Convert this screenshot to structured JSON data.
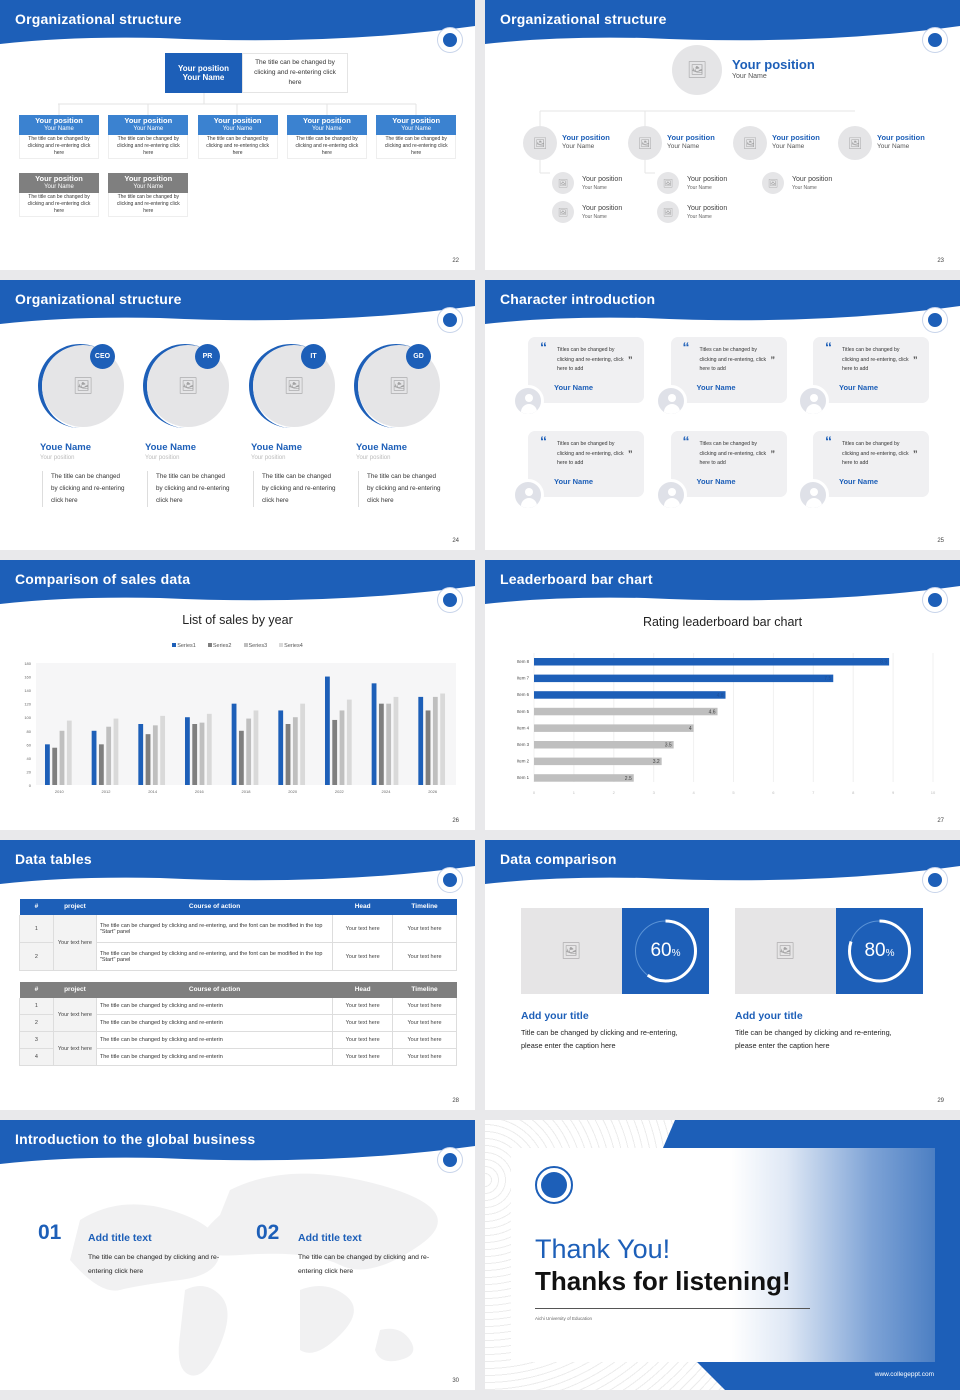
{
  "colors": {
    "accent": "#1d5fb8",
    "accent_light": "#3b82d0",
    "gray_header": "#7f7f7f",
    "bar_gray": "#bfbfbf",
    "card_bg": "#f0f0f2"
  },
  "slides": [
    {
      "title": "Organizational structure",
      "page": "22",
      "top": {
        "position": "Your position",
        "name": "Your Name",
        "desc": "The title can be changed by clicking and re-entering click here"
      },
      "row1": [
        {
          "position": "Your position",
          "name": "Your Name",
          "desc": "The title can be changed by clicking and re-entering click here"
        },
        {
          "position": "Your position",
          "name": "Your Name",
          "desc": "The title can be changed by clicking and re-entering click here"
        },
        {
          "position": "Your position",
          "name": "Your Name",
          "desc": "The title can be changed by clicking and re-entering click here"
        },
        {
          "position": "Your position",
          "name": "Your Name",
          "desc": "The title can be changed by clicking and re-entering click here"
        },
        {
          "position": "Your position",
          "name": "Your Name",
          "desc": "The title can be changed by clicking and re-entering click here"
        }
      ],
      "row2": [
        {
          "position": "Your position",
          "name": "Your Name",
          "desc": "The title can be changed by clicking and re-entering click here"
        },
        {
          "position": "Your position",
          "name": "Your Name",
          "desc": "The title can be changed by clicking and re-entering click here"
        }
      ]
    },
    {
      "title": "Organizational structure",
      "page": "23",
      "top": {
        "position": "Your position",
        "name": "Your Name"
      },
      "level1": [
        {
          "position": "Your position",
          "name": "Your Name"
        },
        {
          "position": "Your position",
          "name": "Your Name"
        },
        {
          "position": "Your position",
          "name": "Your Name"
        },
        {
          "position": "Your position",
          "name": "Your Name"
        }
      ],
      "level2": [
        {
          "position": "Your position",
          "name": "Your Name"
        },
        {
          "position": "Your position",
          "name": "Your Name"
        },
        {
          "position": "Your position",
          "name": "Your Name"
        },
        {
          "position": "Your position",
          "name": "Your Name"
        },
        {
          "position": "Your position",
          "name": "Your Name"
        }
      ]
    },
    {
      "title": "Organizational structure",
      "page": "24",
      "members": [
        {
          "badge": "CEO",
          "name": "Youe Name",
          "position": "Your position",
          "desc": "The title can be changed by clicking and re-entering click here"
        },
        {
          "badge": "PR",
          "name": "Youe Name",
          "position": "Your position",
          "desc": "The title can be changed by clicking and re-entering click here"
        },
        {
          "badge": "IT",
          "name": "Youe Name",
          "position": "Your position",
          "desc": "The title can be changed by clicking and re-entering click here"
        },
        {
          "badge": "GD",
          "name": "Youe Name",
          "position": "Your position",
          "desc": "The title can be changed by clicking and re-entering click here"
        }
      ]
    },
    {
      "title": "Character introduction",
      "page": "25",
      "cards": [
        {
          "quote": "Titles can be changed by clicking and re-entering, click here to add",
          "name": "Your Name"
        },
        {
          "quote": "Titles can be changed by clicking and re-entering, click here to add",
          "name": "Your Name"
        },
        {
          "quote": "Titles can be changed by clicking and re-entering, click here to add",
          "name": "Your Name"
        },
        {
          "quote": "Titles can be changed by clicking and re-entering, click here to add",
          "name": "Your Name"
        },
        {
          "quote": "Titles can be changed by clicking and re-entering, click here to add",
          "name": "Your Name"
        },
        {
          "quote": "Titles can be changed by clicking and re-entering, click here to add",
          "name": "Your Name"
        }
      ]
    },
    {
      "title": "Comparison of sales data",
      "page": "26"
    },
    {
      "title": "Leaderboard bar chart",
      "page": "27"
    },
    {
      "title": "Data tables",
      "page": "28",
      "table1": {
        "headers": [
          "#",
          "project",
          "Course of action",
          "Head",
          "Timeline"
        ],
        "project": "Your text here",
        "rows": [
          [
            "1",
            "The title can be changed by clicking and re-entering, and the font can be modified in the top \"Start\" panel",
            "Your text here",
            "Your text here"
          ],
          [
            "2",
            "The title can be changed by clicking and re-entering, and the font can be modified in the top \"Start\" panel",
            "Your text here",
            "Your text here"
          ]
        ]
      },
      "table2": {
        "headers": [
          "#",
          "project",
          "Course of action",
          "Head",
          "Timeline"
        ],
        "projects": [
          "Your text here",
          "Your text here"
        ],
        "rows": [
          [
            "1",
            "The title can be changed by clicking and re-enterin",
            "Your text here",
            "Your text here"
          ],
          [
            "2",
            "The title can be changed by clicking and re-enterin",
            "Your text here",
            "Your text here"
          ],
          [
            "3",
            "The title can be changed by clicking and re-enterin",
            "Your text here",
            "Your text here"
          ],
          [
            "4",
            "The title can be changed by clicking and re-enterin",
            "Your text here",
            "Your text here"
          ]
        ]
      }
    },
    {
      "title": "Data comparison",
      "page": "29",
      "items": [
        {
          "value": 60,
          "value_label": "60",
          "unit": "%",
          "title": "Add your title",
          "desc": "Title can be changed by clicking and re-entering, please enter the caption here"
        },
        {
          "value": 80,
          "value_label": "80",
          "unit": "%",
          "title": "Add your title",
          "desc": "Title can be changed by clicking and re-entering, please enter the caption here"
        }
      ]
    },
    {
      "title": "Introduction to the global business",
      "page": "30",
      "items": [
        {
          "num": "01",
          "title": "Add title text",
          "desc": "The title can be changed by clicking and re-entering click here"
        },
        {
          "num": "02",
          "title": "Add title text",
          "desc": "The title can be changed by clicking and re-entering click here"
        }
      ]
    },
    {
      "thanks": "Thank You!",
      "subtitle": "Thanks for listening!",
      "university": "Aichi University of Education",
      "website": "www.collegeppt.com"
    }
  ],
  "chart_data": [
    {
      "type": "bar",
      "title": "List of sales by year",
      "categories": [
        "2010",
        "2012",
        "2014",
        "2016",
        "2018",
        "2020",
        "2022",
        "2024",
        "2026"
      ],
      "series": [
        {
          "name": "Series1",
          "color": "#1d5fb8",
          "values": [
            60,
            80,
            90,
            100,
            120,
            110,
            160,
            150,
            130
          ]
        },
        {
          "name": "Series2",
          "color": "#7f7f7f",
          "values": [
            55,
            60,
            75,
            90,
            80,
            90,
            96,
            120,
            110
          ]
        },
        {
          "name": "Series3",
          "color": "#bfbfbf",
          "values": [
            80,
            86,
            88,
            92,
            98,
            100,
            110,
            120,
            130
          ]
        },
        {
          "name": "Series4",
          "color": "#d9d9d9",
          "values": [
            95,
            98,
            102,
            105,
            110,
            120,
            126,
            130,
            135
          ]
        }
      ],
      "ylim": [
        0,
        180
      ],
      "yticks": [
        "0",
        "20",
        "40",
        "60",
        "80",
        "100",
        "120",
        "140",
        "160",
        "180"
      ],
      "legend": "top",
      "grid": false
    },
    {
      "type": "bar",
      "orientation": "horizontal",
      "title": "Rating leaderboard bar chart",
      "categories": [
        "Item 8",
        "Item 7",
        "Item 6",
        "Item 5",
        "Item 4",
        "Item 3",
        "Item 2",
        "Item 1"
      ],
      "values": [
        8.9,
        7.5,
        4.8,
        4.6,
        4,
        3.5,
        3.2,
        2.5
      ],
      "labels": [
        "8.9",
        "7.5",
        "4.8",
        "4.6",
        "4",
        "3.5",
        "3.2",
        "2.5"
      ],
      "highlight_colors": [
        "#1d5fb8",
        "#1d5fb8",
        "#1d5fb8",
        "#bfbfbf",
        "#bfbfbf",
        "#bfbfbf",
        "#bfbfbf",
        "#bfbfbf"
      ],
      "xlim": [
        0,
        10
      ],
      "xticks": [
        "0",
        "1",
        "2",
        "3",
        "4",
        "5",
        "6",
        "7",
        "8",
        "9",
        "10"
      ],
      "grid": true
    }
  ]
}
